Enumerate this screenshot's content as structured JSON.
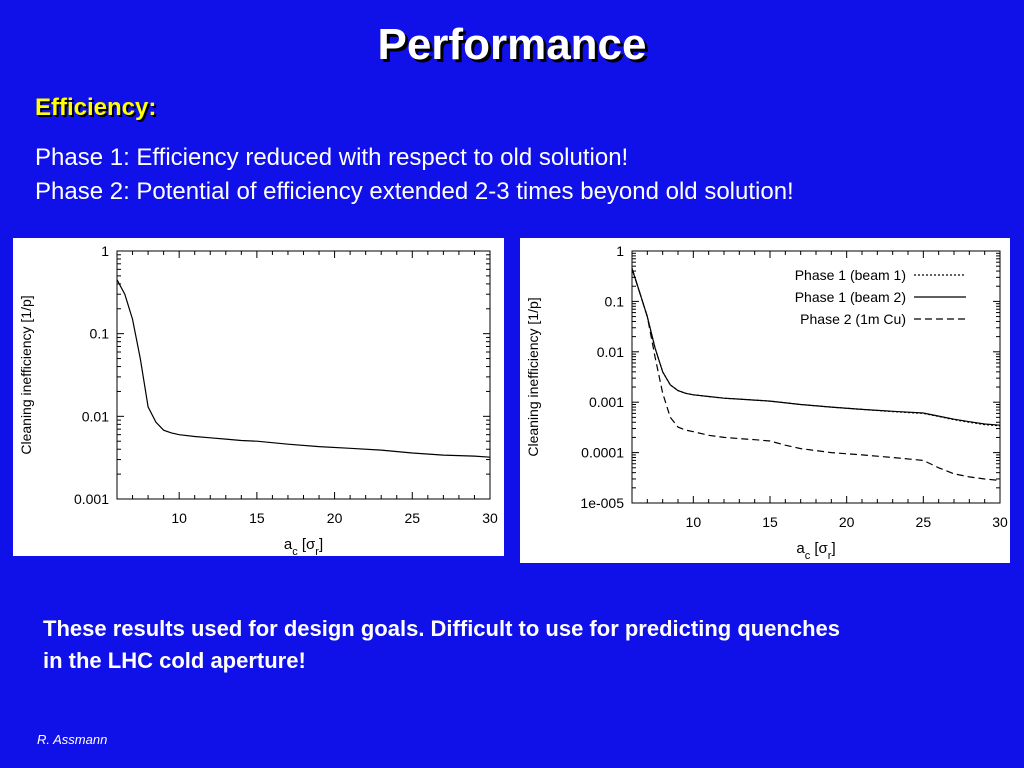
{
  "slide": {
    "title": "Performance",
    "subheading": "Efficiency:",
    "line1": "Phase 1: Efficiency reduced with respect to old solution!",
    "line2": "Phase 2: Potential of efficiency extended 2-3 times beyond old solution!",
    "note_line1": "These results used for design goals. Difficult to use for predicting quenches",
    "note_line2": "in the LHC cold aperture!",
    "footer": "R. Assmann",
    "background_color": "#1010e8",
    "subheading_color": "#ffff00"
  },
  "chart_data": [
    {
      "type": "line",
      "ylabel": "Cleaning inefficiency [1/p]",
      "xlabel_base": "a",
      "xlabel_sub": "c",
      "xlabel_bracket_sym": "σ",
      "xlabel_bracket_sub": "r",
      "xlim": [
        6,
        30
      ],
      "ylim": [
        0.001,
        1
      ],
      "yscale": "log",
      "xticks": [
        10,
        15,
        20,
        25,
        30
      ],
      "yticks": [
        1,
        0.1,
        0.01,
        0.001
      ],
      "ytick_labels": [
        "1",
        "0.1",
        "0.01",
        "0.001"
      ],
      "series": [
        {
          "style": "solid",
          "x": [
            6,
            6.5,
            7,
            7.5,
            8,
            8.5,
            9,
            9.5,
            10,
            11,
            12,
            13,
            14,
            15,
            17,
            19,
            21,
            23,
            25,
            27,
            29,
            30
          ],
          "y": [
            0.45,
            0.3,
            0.15,
            0.05,
            0.013,
            0.0085,
            0.0068,
            0.0063,
            0.006,
            0.0057,
            0.0055,
            0.0053,
            0.0051,
            0.005,
            0.0046,
            0.0043,
            0.0041,
            0.0039,
            0.0036,
            0.0034,
            0.0033,
            0.0032
          ]
        }
      ]
    },
    {
      "type": "line",
      "ylabel": "Cleaning inefficiency [1/p]",
      "xlabel_base": "a",
      "xlabel_sub": "c",
      "xlabel_bracket_sym": "σ",
      "xlabel_bracket_sub": "r",
      "xlim": [
        6,
        30
      ],
      "ylim": [
        1e-05,
        1
      ],
      "yscale": "log",
      "xticks": [
        10,
        15,
        20,
        25,
        30
      ],
      "yticks": [
        1,
        0.1,
        0.01,
        0.001,
        0.0001,
        1e-05
      ],
      "ytick_labels": [
        "1",
        "0.1",
        "0.01",
        "0.001",
        "0.0001",
        "1e-005"
      ],
      "legend": "top-right",
      "series": [
        {
          "name": "Phase 1 (beam 1)",
          "style": "dotted",
          "x": [
            6,
            6.5,
            7,
            7.5,
            8,
            8.5,
            9,
            9.5,
            10,
            11,
            12,
            13,
            14,
            15,
            17,
            19,
            21,
            23,
            25,
            26,
            27,
            28,
            29,
            30
          ],
          "y": [
            0.45,
            0.15,
            0.05,
            0.012,
            0.004,
            0.0022,
            0.0017,
            0.0015,
            0.0014,
            0.0013,
            0.0012,
            0.00115,
            0.0011,
            0.00105,
            0.0009,
            0.0008,
            0.00072,
            0.00065,
            0.0006,
            0.00052,
            0.00045,
            0.0004,
            0.00036,
            0.00034
          ]
        },
        {
          "name": "Phase 1 (beam 2)",
          "style": "solid",
          "x": [
            6,
            6.5,
            7,
            7.5,
            8,
            8.5,
            9,
            9.5,
            10,
            11,
            12,
            13,
            14,
            15,
            17,
            19,
            21,
            23,
            25,
            26,
            27,
            28,
            29,
            30
          ],
          "y": [
            0.45,
            0.15,
            0.05,
            0.012,
            0.004,
            0.0022,
            0.0017,
            0.0015,
            0.0014,
            0.0013,
            0.0012,
            0.00115,
            0.0011,
            0.00105,
            0.0009,
            0.0008,
            0.00072,
            0.00066,
            0.00061,
            0.00053,
            0.00046,
            0.00041,
            0.00037,
            0.00035
          ]
        },
        {
          "name": "Phase 2 (1m Cu)",
          "style": "dashed",
          "x": [
            6,
            6.5,
            7,
            7.5,
            8,
            8.5,
            9,
            9.5,
            10,
            11,
            12,
            13,
            14,
            15,
            16,
            17,
            19,
            21,
            23,
            25,
            26,
            27,
            28,
            29,
            30
          ],
          "y": [
            0.45,
            0.15,
            0.05,
            0.008,
            0.0015,
            0.0005,
            0.00032,
            0.00028,
            0.00026,
            0.00022,
            0.0002,
            0.00019,
            0.00018,
            0.00017,
            0.00014,
            0.00012,
            0.0001,
            9e-05,
            8e-05,
            7e-05,
            5e-05,
            3.8e-05,
            3.3e-05,
            3e-05,
            2.8e-05
          ]
        }
      ]
    }
  ]
}
